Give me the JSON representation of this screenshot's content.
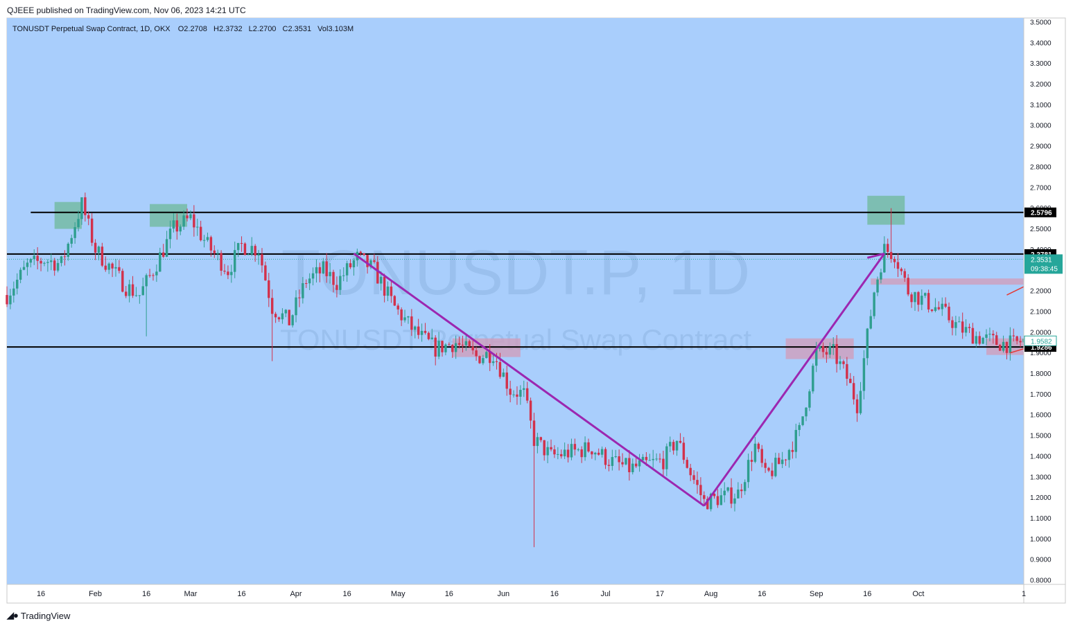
{
  "header": {
    "published": "QJEEE published on TradingView.com, Nov 06, 2023 14:21 UTC"
  },
  "footer": {
    "brand": "TradingView",
    "logo_icon": "tv-logo-icon"
  },
  "legend": {
    "symbol": "TONUSDT Perpetual Swap Contract, 1D, OKX",
    "o_label": "O",
    "o": "2.2708",
    "h_label": "H",
    "h": "2.3732",
    "l_label": "L",
    "l": "2.2700",
    "c_label": "C",
    "c": "2.3531",
    "vol_label": "Vol",
    "vol": "3.103M"
  },
  "watermark": {
    "ticker": "TONUSDT.P, 1D",
    "name": "TONUSDT Perpetual Swap Contract"
  },
  "colors": {
    "background": "#a9cefc",
    "up": "#2f9e8f",
    "down": "#d2314b",
    "trendline": "#9c27b0",
    "supply_zone": "#6fb89a",
    "demand_zone": "#d39bb8",
    "level_line": "#000000",
    "price_badge": "#26a69a"
  },
  "chart_data": {
    "type": "candlestick",
    "ylim": [
      0.78,
      3.52
    ],
    "y_ticks": [
      "3.5000",
      "3.4000",
      "3.3000",
      "3.2000",
      "3.1000",
      "3.0000",
      "2.9000",
      "2.8000",
      "2.7000",
      "2.6000",
      "2.5000",
      "2.4000",
      "2.3000",
      "2.2000",
      "2.1000",
      "2.0000",
      "1.9000",
      "1.8000",
      "1.7000",
      "1.6000",
      "1.5000",
      "1.4000",
      "1.3000",
      "1.2000",
      "1.1000",
      "1.0000",
      "0.9000",
      "0.8000"
    ],
    "x_range": [
      "2023-01-06",
      "2023-11-01"
    ],
    "x_ticks": [
      {
        "label": "16",
        "date": "2023-01-16"
      },
      {
        "label": "Feb",
        "date": "2023-02-01"
      },
      {
        "label": "16",
        "date": "2023-02-16"
      },
      {
        "label": "Mar",
        "date": "2023-03-01"
      },
      {
        "label": "16",
        "date": "2023-03-16"
      },
      {
        "label": "Apr",
        "date": "2023-04-01"
      },
      {
        "label": "16",
        "date": "2023-04-16"
      },
      {
        "label": "May",
        "date": "2023-05-01"
      },
      {
        "label": "16",
        "date": "2023-05-16"
      },
      {
        "label": "Jun",
        "date": "2023-06-01"
      },
      {
        "label": "16",
        "date": "2023-06-16"
      },
      {
        "label": "Jul",
        "date": "2023-07-01"
      },
      {
        "label": "17",
        "date": "2023-07-17"
      },
      {
        "label": "Aug",
        "date": "2023-08-01"
      },
      {
        "label": "16",
        "date": "2023-08-16"
      },
      {
        "label": "Sep",
        "date": "2023-09-01"
      },
      {
        "label": "16",
        "date": "2023-09-16"
      },
      {
        "label": "Oct",
        "date": "2023-10-01"
      },
      {
        "label": "1",
        "date": "2023-11-01"
      }
    ],
    "price_path": [
      [
        "2023-01-06",
        2.18
      ],
      [
        "2023-01-12",
        2.32
      ],
      [
        "2023-01-17",
        2.35
      ],
      [
        "2023-01-22",
        2.33
      ],
      [
        "2023-01-28",
        2.62
      ],
      [
        "2023-02-01",
        2.4
      ],
      [
        "2023-02-06",
        2.3
      ],
      [
        "2023-02-10",
        2.22
      ],
      [
        "2023-02-14",
        2.18
      ],
      [
        "2023-02-18",
        2.3
      ],
      [
        "2023-02-24",
        2.5
      ],
      [
        "2023-03-01",
        2.55
      ],
      [
        "2023-03-06",
        2.42
      ],
      [
        "2023-03-12",
        2.3
      ],
      [
        "2023-03-16",
        2.42
      ],
      [
        "2023-03-21",
        2.4
      ],
      [
        "2023-03-25",
        2.12
      ],
      [
        "2023-03-30",
        2.05
      ],
      [
        "2023-04-04",
        2.25
      ],
      [
        "2023-04-09",
        2.3
      ],
      [
        "2023-04-13",
        2.24
      ],
      [
        "2023-04-19",
        2.36
      ],
      [
        "2023-04-24",
        2.3
      ],
      [
        "2023-04-30",
        2.12
      ],
      [
        "2023-05-06",
        2.0
      ],
      [
        "2023-05-12",
        1.92
      ],
      [
        "2023-05-18",
        1.95
      ],
      [
        "2023-05-24",
        1.88
      ],
      [
        "2023-05-29",
        1.9
      ],
      [
        "2023-06-03",
        1.72
      ],
      [
        "2023-06-07",
        1.7
      ],
      [
        "2023-06-10",
        1.48
      ],
      [
        "2023-06-15",
        1.4
      ],
      [
        "2023-06-21",
        1.42
      ],
      [
        "2023-06-27",
        1.44
      ],
      [
        "2023-07-02",
        1.38
      ],
      [
        "2023-07-08",
        1.34
      ],
      [
        "2023-07-13",
        1.36
      ],
      [
        "2023-07-18",
        1.38
      ],
      [
        "2023-07-22",
        1.48
      ],
      [
        "2023-07-26",
        1.32
      ],
      [
        "2023-07-30",
        1.18
      ],
      [
        "2023-08-04",
        1.2
      ],
      [
        "2023-08-09",
        1.22
      ],
      [
        "2023-08-14",
        1.45
      ],
      [
        "2023-08-17",
        1.3
      ],
      [
        "2023-08-22",
        1.38
      ],
      [
        "2023-08-27",
        1.52
      ],
      [
        "2023-09-01",
        1.9
      ],
      [
        "2023-09-06",
        1.9
      ],
      [
        "2023-09-10",
        1.78
      ],
      [
        "2023-09-13",
        1.65
      ],
      [
        "2023-09-18",
        2.2
      ],
      [
        "2023-09-21",
        2.4
      ],
      [
        "2023-09-24",
        2.38
      ],
      [
        "2023-09-28",
        2.2
      ],
      [
        "2023-10-03",
        2.15
      ],
      [
        "2023-10-08",
        2.1
      ],
      [
        "2023-10-13",
        2.02
      ],
      [
        "2023-10-18",
        1.98
      ],
      [
        "2023-10-24",
        1.95
      ],
      [
        "2023-10-29",
        1.94
      ],
      [
        "2023-11-01",
        1.96
      ]
    ],
    "notable_wicks": [
      {
        "date": "2023-01-28",
        "high": 2.64
      },
      {
        "date": "2023-02-16",
        "low": 1.98
      },
      {
        "date": "2023-03-25",
        "low": 1.86
      },
      {
        "date": "2023-06-10",
        "low": 0.96
      },
      {
        "date": "2023-09-23",
        "high": 2.6
      },
      {
        "date": "2023-09-14",
        "low": 1.6
      }
    ],
    "levels": [
      {
        "price": 2.5796,
        "label": "2.5796",
        "from": "2023-01-13"
      },
      {
        "price": 2.3781,
        "label": "2.3781",
        "from": "2023-01-06"
      },
      {
        "price": 1.9286,
        "label": "1.9286",
        "from": "2023-01-06"
      }
    ],
    "current_price": {
      "price": 2.3531,
      "label": "2.3531",
      "countdown": "09:38:45"
    },
    "secondary_price": {
      "price": 1.9582,
      "label": "1.9582"
    },
    "trendlines": [
      {
        "from": [
          "2023-04-18",
          2.38
        ],
        "to": [
          "2023-07-30",
          1.16
        ]
      },
      {
        "from": [
          "2023-07-30",
          1.16
        ],
        "to": [
          "2023-09-21",
          2.38
        ]
      },
      {
        "from": [
          "2023-09-16",
          2.36
        ],
        "to": [
          "2023-09-21",
          2.38
        ]
      }
    ],
    "red_marks": [
      {
        "from": [
          "2023-10-27",
          2.18
        ],
        "to": [
          "2023-11-01",
          2.22
        ]
      },
      {
        "from": [
          "2023-10-28",
          1.9
        ],
        "to": [
          "2023-11-01",
          1.92
        ]
      }
    ],
    "zones": [
      {
        "type": "supply",
        "from": "2023-01-20",
        "to": "2023-01-28",
        "top": 2.63,
        "bottom": 2.5
      },
      {
        "type": "supply",
        "from": "2023-02-17",
        "to": "2023-02-28",
        "top": 2.62,
        "bottom": 2.51
      },
      {
        "type": "supply",
        "from": "2023-09-16",
        "to": "2023-09-27",
        "top": 2.66,
        "bottom": 2.52
      },
      {
        "type": "demand",
        "from": "2023-05-17",
        "to": "2023-06-06",
        "top": 1.97,
        "bottom": 1.88
      },
      {
        "type": "demand",
        "from": "2023-08-23",
        "to": "2023-09-12",
        "top": 1.97,
        "bottom": 1.87
      },
      {
        "type": "demand",
        "from": "2023-09-17",
        "to": "2023-11-01",
        "top": 2.26,
        "bottom": 2.23
      },
      {
        "type": "demand",
        "from": "2023-10-21",
        "to": "2023-11-01",
        "top": 1.97,
        "bottom": 1.89
      }
    ]
  }
}
